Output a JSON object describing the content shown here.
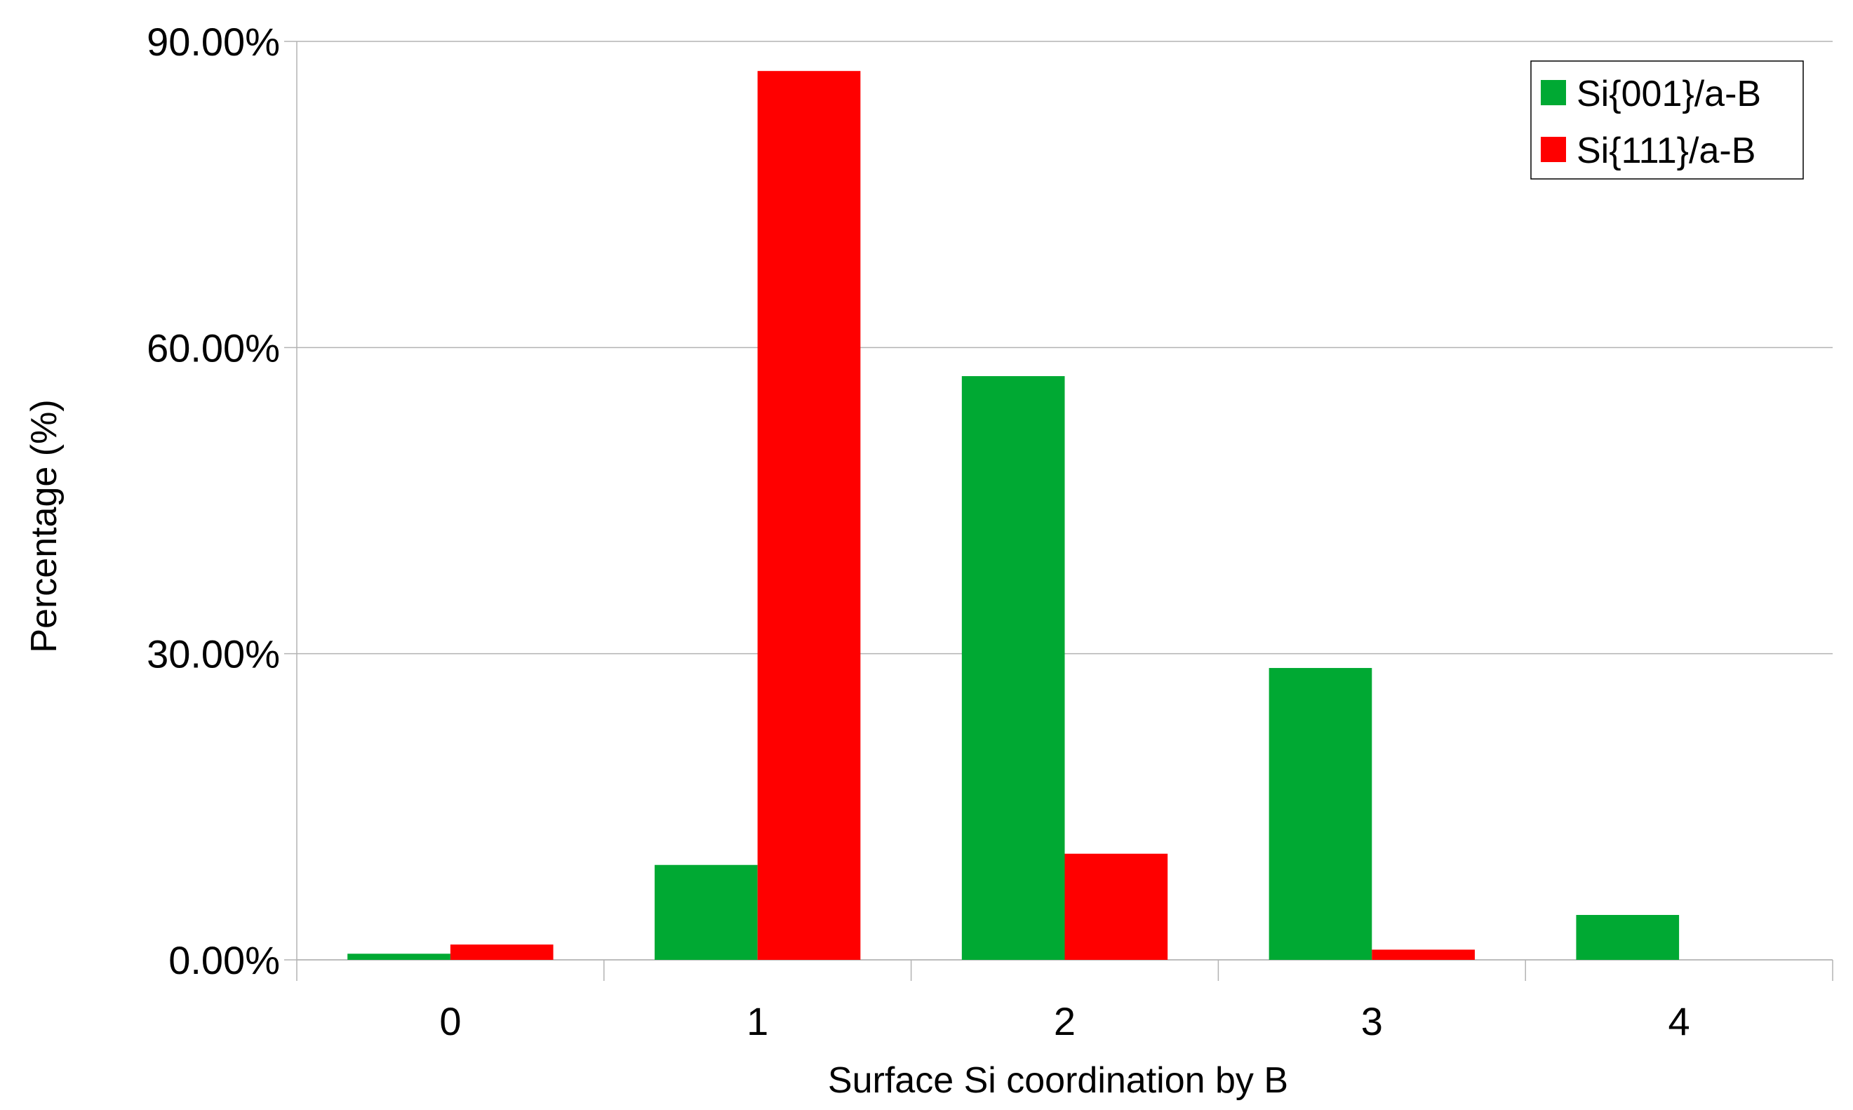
{
  "chart_data": {
    "type": "bar",
    "categories": [
      "0",
      "1",
      "2",
      "3",
      "4"
    ],
    "series": [
      {
        "name": "Si{001}/a-B",
        "color": "#00a933",
        "values": [
          0.6,
          9.3,
          57.2,
          28.6,
          4.4
        ]
      },
      {
        "name": "Si{111}/a-B",
        "color": "#ff0000",
        "values": [
          1.5,
          87.1,
          10.4,
          1.0,
          0.0
        ]
      }
    ],
    "xlabel": "Surface Si coordination by B",
    "ylabel": "Percentage (%)",
    "ylim": [
      0,
      90
    ],
    "yticks": [
      0,
      30,
      60,
      90
    ],
    "ytick_labels": [
      "0.00%",
      "30.00%",
      "60.00%",
      "90.00%"
    ],
    "grid": "horizontal",
    "legend_position": "top-right"
  }
}
